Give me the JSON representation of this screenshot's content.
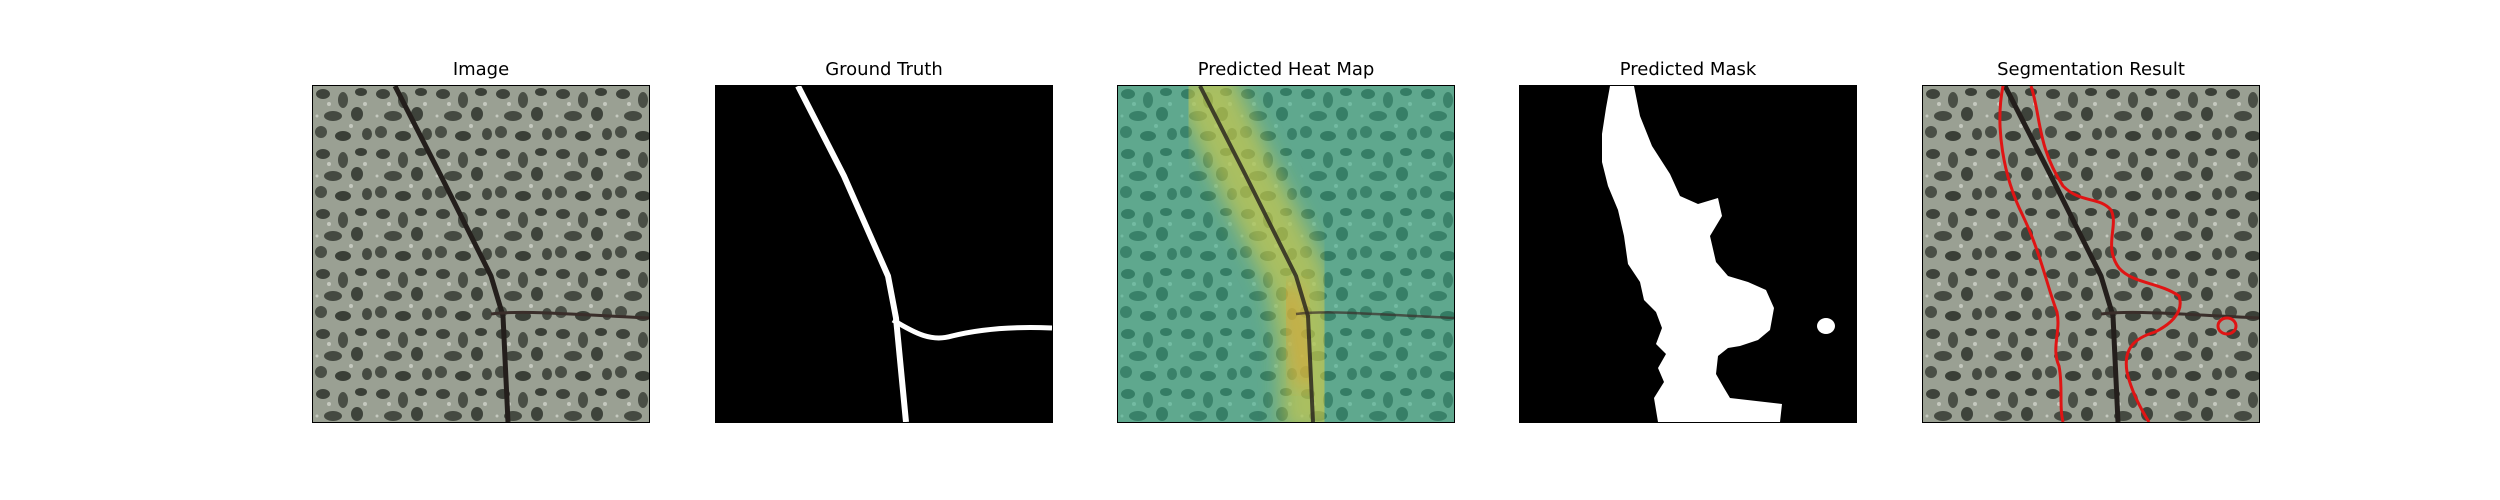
{
  "figure": {
    "panels": [
      {
        "title": "Image"
      },
      {
        "title": "Ground Truth"
      },
      {
        "title": "Predicted Heat Map"
      },
      {
        "title": "Predicted Mask"
      },
      {
        "title": "Segmentation Result"
      }
    ]
  },
  "colors": {
    "background": "#ffffff",
    "texture_light": "#9aa093",
    "texture_dark": "#3e433b",
    "crack": "#241f1c",
    "mask_foreground": "#ffffff",
    "mask_background": "#000000",
    "heat_low": "#2fae8a",
    "heat_high": "#e8d23a",
    "contour": "#e01414"
  }
}
